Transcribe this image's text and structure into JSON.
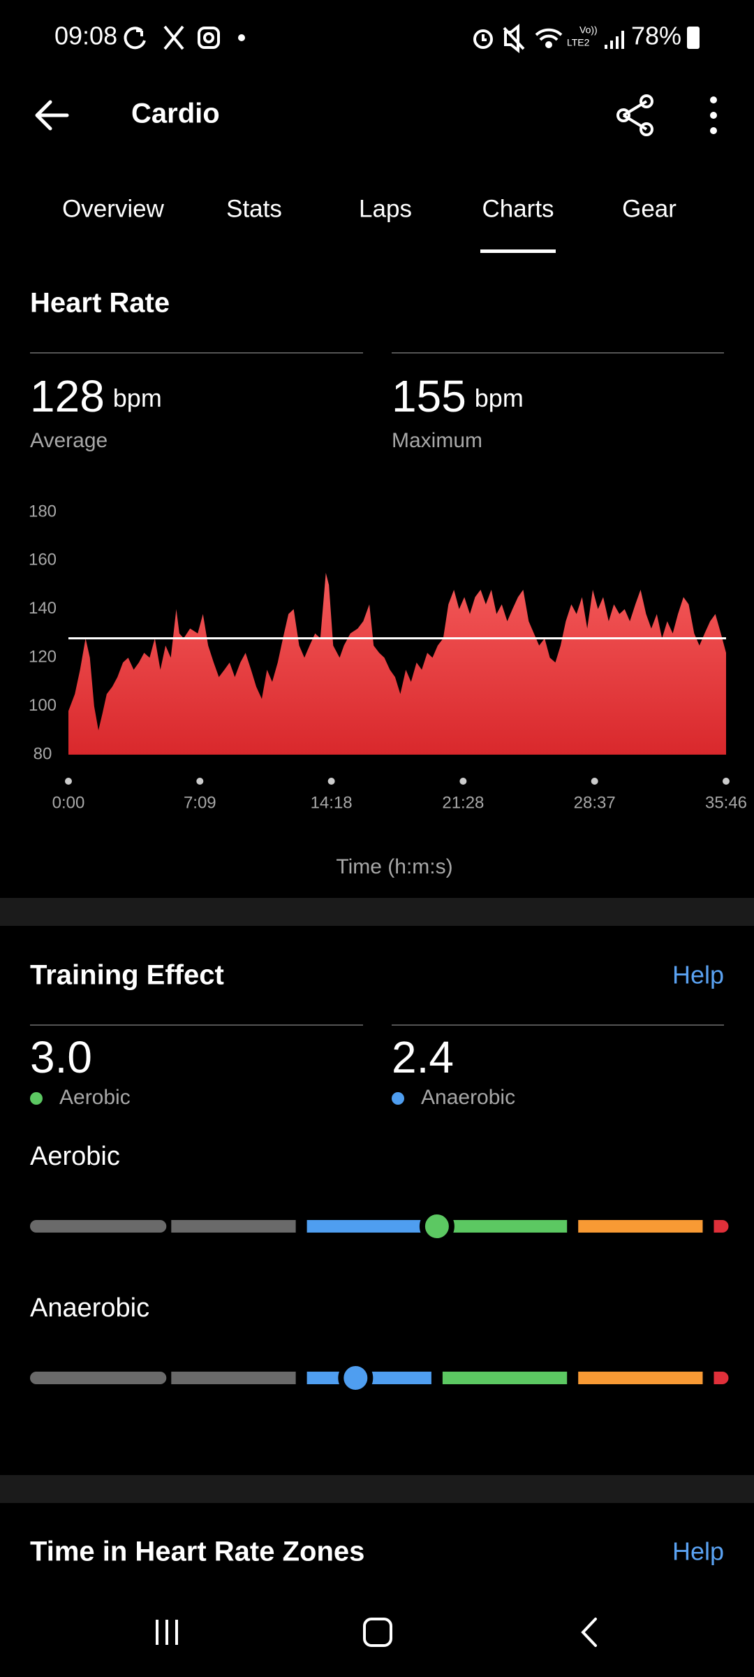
{
  "status_bar": {
    "time": "09:08",
    "network": [
      "Vo))",
      "LTE2"
    ],
    "battery": "78%"
  },
  "header": {
    "title": "Cardio"
  },
  "tabs": [
    {
      "label": "Overview",
      "selected": false
    },
    {
      "label": "Stats",
      "selected": false
    },
    {
      "label": "Laps",
      "selected": false
    },
    {
      "label": "Charts",
      "selected": true
    },
    {
      "label": "Gear",
      "selected": false
    }
  ],
  "chart_data": {
    "type": "area",
    "title": "Heart Rate",
    "stats": [
      {
        "value": 128,
        "unit": "bpm",
        "label": "Average"
      },
      {
        "value": 155,
        "unit": "bpm",
        "label": "Maximum"
      }
    ],
    "x_label": "Time (h:m:s)",
    "color": "#e8363a",
    "reference_color": "#ffffff",
    "xlim": [
      0,
      2146
    ],
    "xticks": [
      {
        "value": 0,
        "label": "0:00"
      },
      {
        "value": 429,
        "label": "7:09"
      },
      {
        "value": 858,
        "label": "14:18"
      },
      {
        "value": 1288,
        "label": "21:28"
      },
      {
        "value": 1717,
        "label": "28:37"
      },
      {
        "value": 2146,
        "label": "35:46"
      }
    ],
    "ylim": [
      80,
      180
    ],
    "yticks": [
      80,
      100,
      120,
      140,
      160,
      180
    ],
    "x": [
      0,
      21,
      38,
      56,
      70,
      84,
      98,
      111,
      125,
      143,
      160,
      178,
      195,
      213,
      230,
      247,
      265,
      282,
      300,
      317,
      334,
      352,
      362,
      376,
      397,
      422,
      439,
      456,
      474,
      491,
      509,
      526,
      543,
      561,
      578,
      596,
      613,
      631,
      648,
      665,
      683,
      700,
      718,
      735,
      753,
      770,
      787,
      805,
      822,
      840,
      850,
      864,
      885,
      899,
      920,
      944,
      962,
      982,
      996,
      1014,
      1031,
      1049,
      1066,
      1083,
      1101,
      1118,
      1136,
      1153,
      1171,
      1188,
      1205,
      1223,
      1240,
      1258,
      1275,
      1292,
      1310,
      1327,
      1345,
      1362,
      1380,
      1397,
      1414,
      1432,
      1449,
      1467,
      1484,
      1502,
      1519,
      1536,
      1554,
      1571,
      1589,
      1606,
      1623,
      1641,
      1658,
      1676,
      1693,
      1711,
      1728,
      1745,
      1763,
      1780,
      1798,
      1815,
      1832,
      1850,
      1867,
      1885,
      1902,
      1920,
      1937,
      1954,
      1972,
      1989,
      2007,
      2024,
      2042,
      2059,
      2076,
      2094,
      2111,
      2129,
      2146
    ],
    "values": [
      98,
      105,
      115,
      128,
      120,
      100,
      90,
      97,
      105,
      108,
      112,
      118,
      120,
      115,
      118,
      122,
      120,
      128,
      115,
      125,
      120,
      140,
      130,
      128,
      132,
      130,
      138,
      125,
      118,
      112,
      115,
      118,
      112,
      118,
      122,
      115,
      108,
      103,
      115,
      110,
      118,
      128,
      138,
      140,
      125,
      120,
      125,
      130,
      128,
      155,
      150,
      125,
      120,
      125,
      130,
      132,
      135,
      142,
      125,
      122,
      120,
      115,
      112,
      105,
      115,
      110,
      118,
      115,
      122,
      120,
      125,
      128,
      142,
      148,
      140,
      145,
      138,
      145,
      148,
      142,
      148,
      138,
      142,
      135,
      140,
      145,
      148,
      135,
      130,
      125,
      128,
      120,
      118,
      125,
      135,
      142,
      138,
      145,
      132,
      148,
      140,
      145,
      135,
      142,
      138,
      140,
      135,
      142,
      148,
      138,
      132,
      138,
      128,
      135,
      130,
      138,
      145,
      142,
      130,
      125,
      130,
      135,
      138,
      130,
      122
    ]
  },
  "training_effect": {
    "title": "Training Effect",
    "help": "Help",
    "values": [
      3.0,
      2.4
    ],
    "value_labels": [
      "3.0",
      "2.4"
    ],
    "names": [
      "Aerobic",
      "Anaerobic"
    ],
    "colors": [
      "#5cc862",
      "#4f9ef0"
    ],
    "xlim": [
      0,
      5
    ],
    "segment_colors": [
      "#6a6a6a",
      "#6a6a6a",
      "#4f9ef0",
      "#5cc862",
      "#f89a34"
    ],
    "end_color": "#e0303a"
  },
  "zones": {
    "title": "Time in Heart Rate Zones",
    "help": "Help"
  }
}
